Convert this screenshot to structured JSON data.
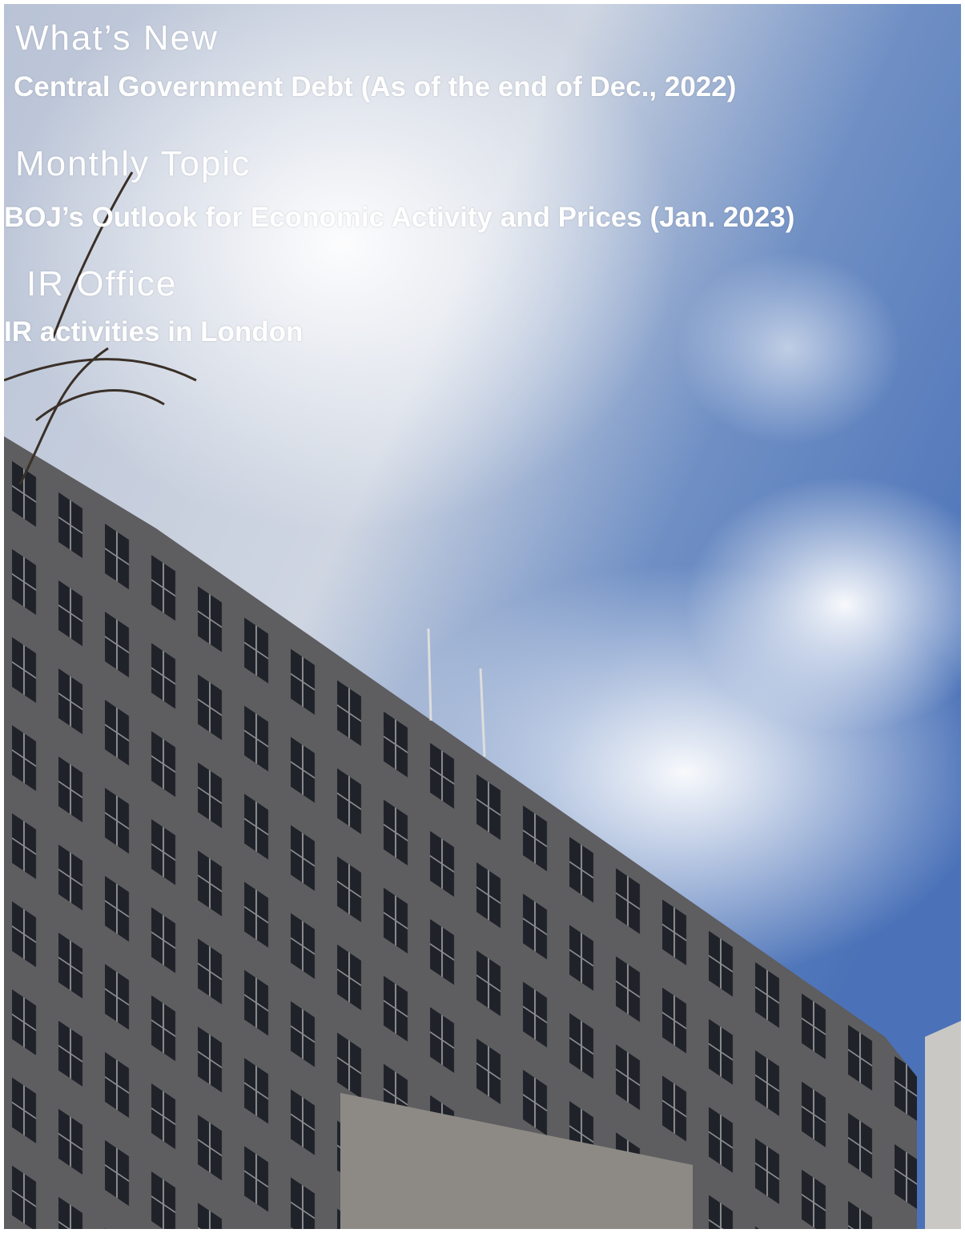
{
  "sections": [
    {
      "heading": "What’s New",
      "item": "Central Government Debt (As of the end of Dec., 2022)"
    },
    {
      "heading": "Monthly Topic",
      "item": "BOJ’s Outlook for Economic Activity and Prices (Jan. 2023)"
    },
    {
      "heading": "IR Office",
      "item": "IR activities in London"
    }
  ]
}
